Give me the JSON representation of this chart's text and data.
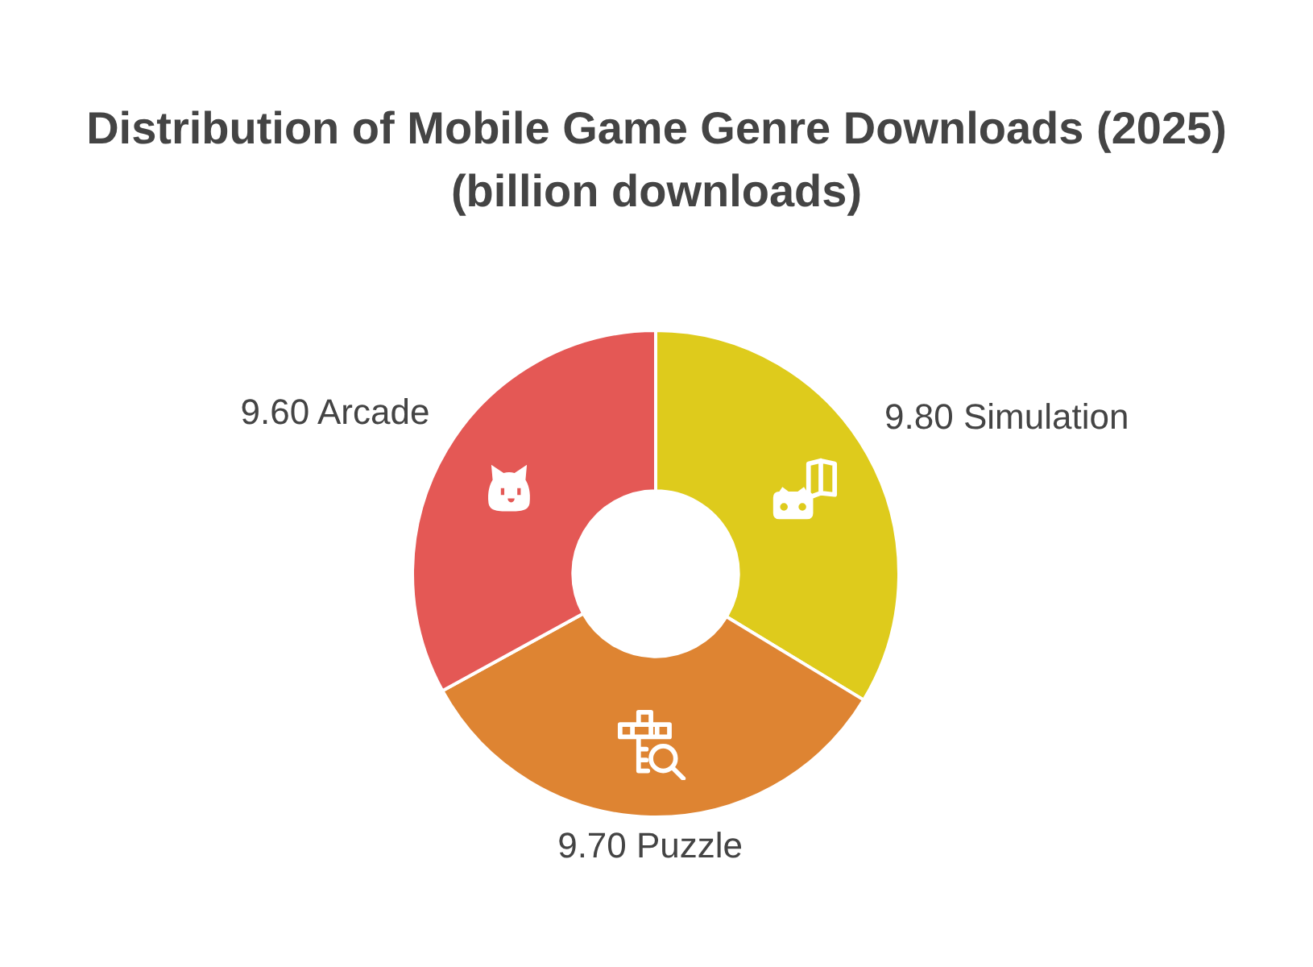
{
  "chart_data": {
    "type": "donut",
    "title": "Distribution of Mobile Game Genre Downloads (2025) (billion downloads)",
    "categories": [
      "Simulation",
      "Puzzle",
      "Arcade"
    ],
    "values": [
      9.8,
      9.7,
      9.6
    ],
    "value_labels": [
      "9.80",
      "9.70",
      "9.60"
    ],
    "colors": [
      "#decb1c",
      "#de8432",
      "#e45855"
    ],
    "legend": false
  }
}
